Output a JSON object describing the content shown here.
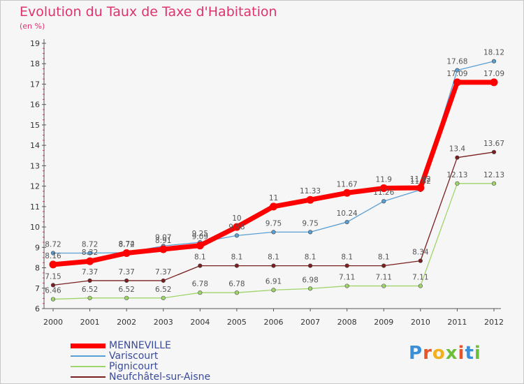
{
  "title": "Evolution du Taux de Taxe d'Habitation",
  "unit_label": "(en %)",
  "logo_letters": [
    {
      "ch": "P",
      "color": "#3a8fd6"
    },
    {
      "ch": "r",
      "color": "#e8542a"
    },
    {
      "ch": "o",
      "color": "#f2b01e"
    },
    {
      "ch": "x",
      "color": "#6bbf3a"
    },
    {
      "ch": "i",
      "color": "#e8542a"
    },
    {
      "ch": "t",
      "color": "#3a8fd6"
    },
    {
      "ch": "i",
      "color": "#6bbf3a"
    }
  ],
  "chart_data": {
    "type": "line",
    "title": "Evolution du Taux de Taxe d'Habitation",
    "ylabel": "(en %)",
    "x": [
      "2000",
      "2001",
      "2002",
      "2003",
      "2004",
      "2005",
      "2006",
      "2007",
      "2008",
      "2009",
      "2010",
      "2011",
      "2012"
    ],
    "ylim": [
      6,
      19
    ],
    "yticks": [
      6,
      7,
      8,
      9,
      10,
      11,
      12,
      13,
      14,
      15,
      16,
      17,
      18,
      19
    ],
    "grid": false,
    "legend_position": "bottom-left",
    "series": [
      {
        "name": "MENNEVILLE",
        "color": "#ff0000",
        "width": 7,
        "values": [
          8.16,
          8.32,
          8.72,
          8.91,
          9.09,
          10,
          11,
          11.33,
          11.67,
          11.9,
          11.92,
          17.09,
          17.09
        ],
        "labels": [
          "8.16",
          "8.32",
          "8.72",
          "8.91",
          "9.09",
          "10",
          "11",
          "11.33",
          "11.67",
          "11.9",
          "11.92",
          "17.09",
          "17.09"
        ]
      },
      {
        "name": "Variscourt",
        "color": "#5a9fd4",
        "width": 1.3,
        "values": [
          8.72,
          8.72,
          8.74,
          9.07,
          9.25,
          9.58,
          9.75,
          9.75,
          10.24,
          11.26,
          11.82,
          17.68,
          18.12
        ],
        "labels": [
          "8.72",
          "8.72",
          "8.74",
          "9.07",
          "9.25",
          "9.58",
          "9.75",
          "9.75",
          "10.24",
          "11.26",
          "11.82",
          "17.68",
          "18.12"
        ]
      },
      {
        "name": "Pignicourt",
        "color": "#9fd46a",
        "width": 1.3,
        "values": [
          6.46,
          6.52,
          6.52,
          6.52,
          6.78,
          6.78,
          6.91,
          6.98,
          7.11,
          7.11,
          7.11,
          12.13,
          12.13
        ],
        "labels": [
          "6.46",
          "6.52",
          "6.52",
          "6.52",
          "6.78",
          "6.78",
          "6.91",
          "6.98",
          "7.11",
          "7.11",
          "7.11",
          "12.13",
          "12.13"
        ]
      },
      {
        "name": "Neufchâtel-sur-Aisne",
        "color": "#7a1f1f",
        "width": 1.3,
        "values": [
          7.15,
          7.37,
          7.37,
          7.37,
          8.1,
          8.1,
          8.1,
          8.1,
          8.1,
          8.1,
          8.34,
          13.4,
          13.67
        ],
        "labels": [
          "7.15",
          "7.37",
          "7.37",
          "7.37",
          "8.1",
          "8.1",
          "8.1",
          "8.1",
          "8.1",
          "8.1",
          "8.34",
          "13.4",
          "13.67"
        ]
      }
    ]
  }
}
